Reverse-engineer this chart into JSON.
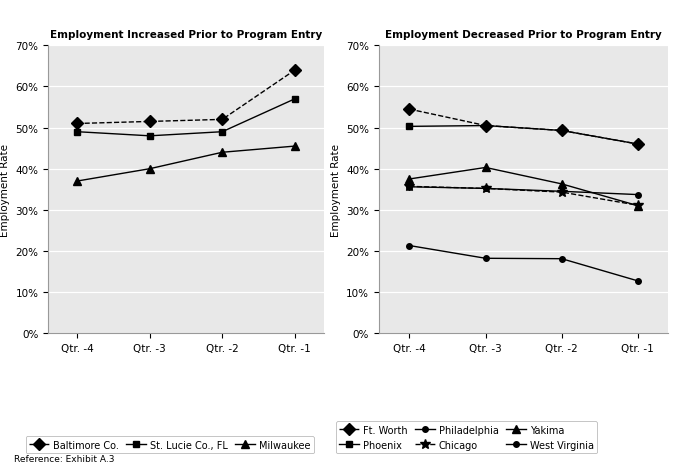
{
  "left_title": "Employment Increased Prior to Program Entry",
  "right_title": "Employment Decreased Prior to Program Entry",
  "x_labels": [
    "Qtr. -4",
    "Qtr. -3",
    "Qtr. -2",
    "Qtr. -1"
  ],
  "x_values": [
    0,
    1,
    2,
    3
  ],
  "left_series": [
    {
      "name": "Baltimore Co.",
      "values": [
        0.51,
        0.515,
        0.52,
        0.64
      ],
      "linestyle": "--",
      "marker": "D",
      "markersize": 6
    },
    {
      "name": "St. Lucie Co., FL",
      "values": [
        0.49,
        0.48,
        0.49,
        0.57
      ],
      "linestyle": "-",
      "marker": "s",
      "markersize": 5
    },
    {
      "name": "Milwaukee",
      "values": [
        0.37,
        0.4,
        0.44,
        0.455
      ],
      "linestyle": "-",
      "marker": "^",
      "markersize": 6
    }
  ],
  "right_series": [
    {
      "name": "Ft. Worth",
      "values": [
        0.545,
        0.505,
        0.493,
        0.46
      ],
      "linestyle": "--",
      "marker": "D",
      "markersize": 6
    },
    {
      "name": "Phoenix",
      "values": [
        0.503,
        0.505,
        0.493,
        0.46
      ],
      "linestyle": "-",
      "marker": "s",
      "markersize": 5
    },
    {
      "name": "Philadelphia",
      "values": [
        0.213,
        0.182,
        0.181,
        0.127
      ],
      "linestyle": "-",
      "marker": "o",
      "markersize": 4
    },
    {
      "name": "Chicago",
      "values": [
        0.357,
        0.352,
        0.343,
        0.311
      ],
      "linestyle": "--",
      "marker": "*",
      "markersize": 7
    },
    {
      "name": "Yakima",
      "values": [
        0.375,
        0.403,
        0.363,
        0.31
      ],
      "linestyle": "-",
      "marker": "^",
      "markersize": 6
    },
    {
      "name": "West Virginia",
      "values": [
        0.356,
        0.352,
        0.345,
        0.337
      ],
      "linestyle": "-",
      "marker": "o",
      "markersize": 4
    }
  ],
  "ylabel": "Employment Rate",
  "ylim": [
    0.0,
    0.7
  ],
  "yticks": [
    0.0,
    0.1,
    0.2,
    0.3,
    0.4,
    0.5,
    0.6,
    0.7
  ],
  "reference": "Reference: Exhibit A.3",
  "plot_bg": "#e8e8e8",
  "fig_bg": "#ffffff"
}
